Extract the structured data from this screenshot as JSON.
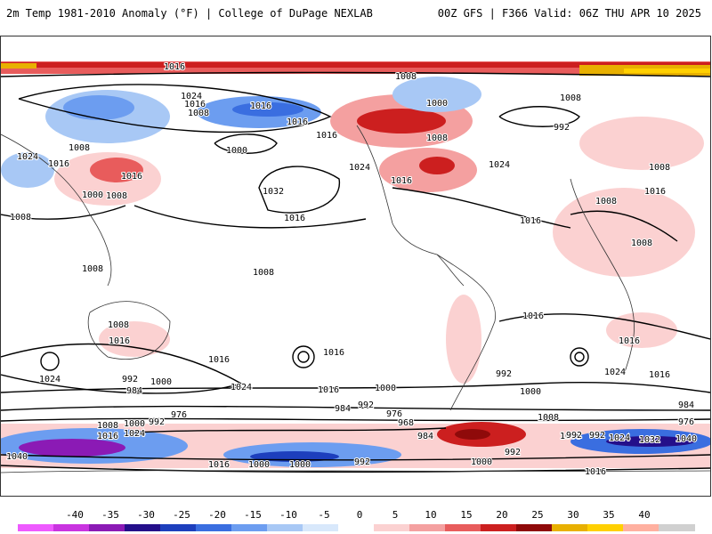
{
  "header": {
    "left_title": "2m Temp 1981-2010 Anomaly (°F) | College of DuPage NEXLAB",
    "right_title": "00Z GFS | F366 Valid: 06Z THU APR 10 2025"
  },
  "legend": {
    "ticks": [
      "-40",
      "-35",
      "-30",
      "-25",
      "-20",
      "-15",
      "-10",
      "-5",
      "0",
      "5",
      "10",
      "15",
      "20",
      "25",
      "30",
      "35",
      "40"
    ],
    "colors": [
      "#ee5aff",
      "#c934e0",
      "#8b1ab5",
      "#240f8a",
      "#1d3fbd",
      "#3a6ee0",
      "#6c9df0",
      "#a8c8f5",
      "#d8e8fb",
      "#ffffff",
      "#fbd1d1",
      "#f4a0a0",
      "#e85c5c",
      "#cc1f1f",
      "#8f0a0a",
      "#e8b000",
      "#ffd000",
      "#ffb0a0",
      "#d0d0d0"
    ]
  },
  "contour_labels": [
    {
      "text": "1016"
    },
    {
      "text": "1024"
    },
    {
      "text": "1016"
    },
    {
      "text": "1008"
    },
    {
      "text": "1016"
    },
    {
      "text": "1016"
    },
    {
      "text": "1016"
    },
    {
      "text": "1008"
    },
    {
      "text": "1000"
    },
    {
      "text": "992"
    },
    {
      "text": "1008"
    },
    {
      "text": "1008"
    },
    {
      "text": "1000"
    },
    {
      "text": "1024"
    },
    {
      "text": "1016"
    },
    {
      "text": "1008"
    },
    {
      "text": "1016"
    },
    {
      "text": "1024"
    },
    {
      "text": "1024"
    },
    {
      "text": "1008"
    },
    {
      "text": "1000"
    },
    {
      "text": "1008"
    },
    {
      "text": "1032"
    },
    {
      "text": "1016"
    },
    {
      "text": "1016"
    },
    {
      "text": "1016"
    },
    {
      "text": "1016"
    },
    {
      "text": "1008"
    },
    {
      "text": "1008"
    },
    {
      "text": "1008"
    },
    {
      "text": "1008"
    },
    {
      "text": "1008"
    },
    {
      "text": "1016"
    },
    {
      "text": "1016"
    },
    {
      "text": "1008"
    },
    {
      "text": "1016"
    },
    {
      "text": "1016"
    },
    {
      "text": "1016"
    },
    {
      "text": "1024"
    },
    {
      "text": "1016"
    },
    {
      "text": "1024"
    },
    {
      "text": "1000"
    },
    {
      "text": "1024"
    },
    {
      "text": "1016"
    },
    {
      "text": "1000"
    },
    {
      "text": "992"
    },
    {
      "text": "992"
    },
    {
      "text": "984"
    },
    {
      "text": "984"
    },
    {
      "text": "992"
    },
    {
      "text": "976"
    },
    {
      "text": "968"
    },
    {
      "text": "1000"
    },
    {
      "text": "976"
    },
    {
      "text": "1008"
    },
    {
      "text": "992"
    },
    {
      "text": "1016"
    },
    {
      "text": "1024"
    },
    {
      "text": "984"
    },
    {
      "text": "992"
    },
    {
      "text": "1000"
    },
    {
      "text": "1008"
    },
    {
      "text": "1000"
    },
    {
      "text": "992"
    },
    {
      "text": "1024"
    },
    {
      "text": "1032"
    },
    {
      "text": "1040"
    },
    {
      "text": "976"
    },
    {
      "text": "984"
    },
    {
      "text": "1040"
    },
    {
      "text": "1008"
    },
    {
      "text": "1016"
    },
    {
      "text": "1000"
    },
    {
      "text": "992"
    },
    {
      "text": "1000"
    },
    {
      "text": "1016"
    },
    {
      "text": "992"
    }
  ]
}
